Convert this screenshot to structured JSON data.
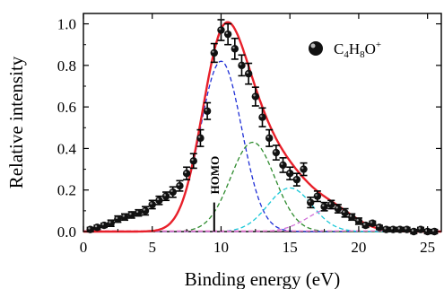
{
  "chart_data": {
    "type": "scatter",
    "xlabel": "Binding energy (eV)",
    "ylabel": "Relative intensity",
    "xlim": [
      0,
      26
    ],
    "ylim": [
      0,
      1.05
    ],
    "xticks": [
      0,
      5,
      10,
      15,
      20,
      25
    ],
    "yticks": [
      0.0,
      0.2,
      0.4,
      0.6,
      0.8,
      1.0
    ],
    "xtick_labels": [
      "0",
      "5",
      "10",
      "15",
      "20",
      "25"
    ],
    "ytick_labels": [
      "0.0",
      "0.2",
      "0.4",
      "0.6",
      "0.8",
      "1.0"
    ],
    "legend": {
      "position": "top-right",
      "label_parts": {
        "base1": "C",
        "sub1": "4",
        "base2": "H",
        "sub2": "8",
        "base3": "O",
        "sup": "+"
      }
    },
    "annotation": {
      "text": "HOMO",
      "x": 9.5,
      "marker_height": 0.14
    },
    "colors": {
      "total": "#e8202a",
      "points": "#111111",
      "band1": "#1f2fd6",
      "band2": "#2e8b2e",
      "band3": "#19c8d8",
      "band4": "#d070d8",
      "baseline": "#e070c8"
    },
    "experimental_points": {
      "x": [
        0.5,
        1.0,
        1.5,
        2.0,
        2.5,
        3.0,
        3.5,
        4.0,
        4.5,
        5.0,
        5.5,
        6.0,
        6.5,
        7.0,
        7.5,
        8.0,
        8.5,
        9.0,
        9.5,
        10.0,
        10.5,
        11.0,
        11.5,
        12.0,
        12.5,
        13.0,
        13.5,
        14.0,
        14.5,
        15.0,
        15.5,
        16.0,
        16.5,
        17.0,
        17.5,
        18.0,
        18.5,
        19.0,
        19.5,
        20.0,
        20.5,
        21.0,
        21.5,
        22.0,
        22.5,
        23.0,
        23.5,
        24.0,
        24.5,
        25.0,
        25.5
      ],
      "y": [
        0.01,
        0.02,
        0.03,
        0.04,
        0.06,
        0.07,
        0.08,
        0.09,
        0.1,
        0.13,
        0.15,
        0.17,
        0.19,
        0.22,
        0.28,
        0.34,
        0.45,
        0.58,
        0.86,
        0.97,
        0.95,
        0.88,
        0.8,
        0.76,
        0.65,
        0.55,
        0.45,
        0.38,
        0.32,
        0.28,
        0.25,
        0.3,
        0.14,
        0.17,
        0.12,
        0.13,
        0.11,
        0.09,
        0.07,
        0.05,
        0.03,
        0.04,
        0.02,
        0.01,
        0.01,
        0.01,
        0.01,
        0.0,
        0.01,
        0.0,
        0.0
      ],
      "error": [
        0.01,
        0.01,
        0.01,
        0.015,
        0.015,
        0.015,
        0.015,
        0.015,
        0.02,
        0.02,
        0.02,
        0.02,
        0.025,
        0.025,
        0.03,
        0.035,
        0.04,
        0.04,
        0.045,
        0.05,
        0.05,
        0.05,
        0.05,
        0.05,
        0.045,
        0.045,
        0.04,
        0.035,
        0.035,
        0.03,
        0.03,
        0.03,
        0.025,
        0.025,
        0.02,
        0.02,
        0.02,
        0.02,
        0.015,
        0.015,
        0.01,
        0.01,
        0.01,
        0.01,
        0.01,
        0.01,
        0.01,
        0.01,
        0.01,
        0.01,
        0.01
      ]
    },
    "components": [
      {
        "center": 10.0,
        "amplitude": 0.82,
        "sigma": 1.5,
        "color_key": "band1"
      },
      {
        "center": 12.3,
        "amplitude": 0.43,
        "sigma": 1.6,
        "color_key": "band2"
      },
      {
        "center": 15.0,
        "amplitude": 0.21,
        "sigma": 1.6,
        "color_key": "band3"
      },
      {
        "center": 18.0,
        "amplitude": 0.11,
        "sigma": 1.7,
        "color_key": "band4"
      }
    ]
  }
}
